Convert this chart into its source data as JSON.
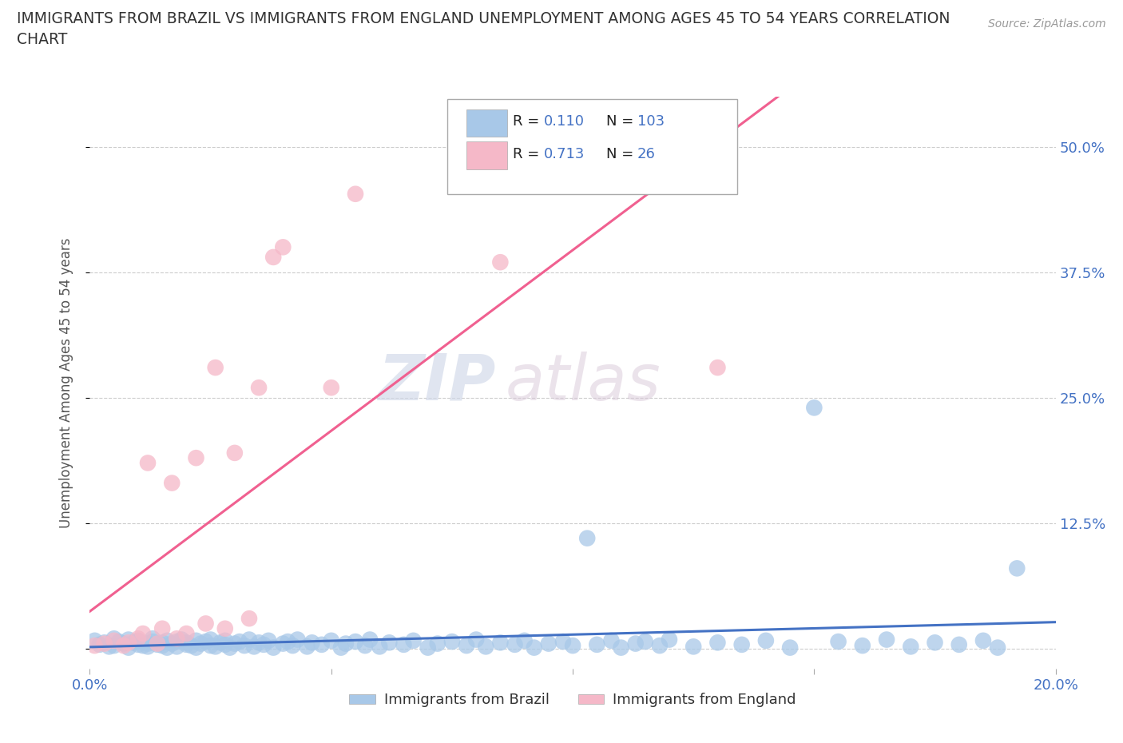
{
  "title": "IMMIGRANTS FROM BRAZIL VS IMMIGRANTS FROM ENGLAND UNEMPLOYMENT AMONG AGES 45 TO 54 YEARS CORRELATION\nCHART",
  "source_text": "Source: ZipAtlas.com",
  "ylabel": "Unemployment Among Ages 45 to 54 years",
  "xlim": [
    0.0,
    0.2
  ],
  "ylim": [
    -0.02,
    0.55
  ],
  "xticks": [
    0.0,
    0.05,
    0.1,
    0.15,
    0.2
  ],
  "xticklabels": [
    "0.0%",
    "",
    "",
    "",
    "20.0%"
  ],
  "yticks": [
    0.0,
    0.125,
    0.25,
    0.375,
    0.5
  ],
  "yticklabels_right": [
    "",
    "12.5%",
    "25.0%",
    "37.5%",
    "50.0%"
  ],
  "brazil_color": "#a8c8e8",
  "england_color": "#f5b8c8",
  "brazil_line_color": "#4472c4",
  "england_line_color": "#f06090",
  "brazil_R": 0.11,
  "brazil_N": 103,
  "england_R": 0.713,
  "england_N": 26,
  "watermark_zip": "ZIP",
  "watermark_atlas": "atlas",
  "legend_brazil": "Immigrants from Brazil",
  "legend_england": "Immigrants from England",
  "grid_color": "#cccccc",
  "background_color": "#ffffff",
  "title_color": "#333333",
  "axis_label_color": "#555555",
  "tick_label_color": "#4472c4",
  "brazil_x": [
    0.001,
    0.002,
    0.003,
    0.004,
    0.005,
    0.005,
    0.006,
    0.007,
    0.008,
    0.008,
    0.009,
    0.01,
    0.01,
    0.011,
    0.012,
    0.012,
    0.013,
    0.013,
    0.014,
    0.015,
    0.015,
    0.016,
    0.016,
    0.017,
    0.018,
    0.018,
    0.019,
    0.02,
    0.02,
    0.021,
    0.022,
    0.022,
    0.023,
    0.024,
    0.025,
    0.025,
    0.026,
    0.027,
    0.028,
    0.028,
    0.029,
    0.03,
    0.031,
    0.032,
    0.033,
    0.034,
    0.035,
    0.036,
    0.037,
    0.038,
    0.04,
    0.041,
    0.042,
    0.043,
    0.045,
    0.046,
    0.048,
    0.05,
    0.052,
    0.053,
    0.055,
    0.057,
    0.058,
    0.06,
    0.062,
    0.065,
    0.067,
    0.07,
    0.072,
    0.075,
    0.078,
    0.08,
    0.082,
    0.085,
    0.088,
    0.09,
    0.092,
    0.095,
    0.098,
    0.1,
    0.103,
    0.105,
    0.108,
    0.11,
    0.113,
    0.115,
    0.118,
    0.12,
    0.125,
    0.13,
    0.135,
    0.14,
    0.145,
    0.15,
    0.155,
    0.16,
    0.165,
    0.17,
    0.175,
    0.18,
    0.185,
    0.188,
    0.192
  ],
  "brazil_y": [
    0.008,
    0.004,
    0.006,
    0.002,
    0.01,
    0.003,
    0.007,
    0.005,
    0.009,
    0.001,
    0.006,
    0.004,
    0.008,
    0.003,
    0.005,
    0.002,
    0.007,
    0.01,
    0.004,
    0.006,
    0.003,
    0.008,
    0.001,
    0.005,
    0.007,
    0.002,
    0.009,
    0.004,
    0.006,
    0.003,
    0.008,
    0.001,
    0.005,
    0.007,
    0.003,
    0.009,
    0.002,
    0.006,
    0.004,
    0.008,
    0.001,
    0.005,
    0.007,
    0.003,
    0.009,
    0.002,
    0.006,
    0.004,
    0.008,
    0.001,
    0.005,
    0.007,
    0.003,
    0.009,
    0.002,
    0.006,
    0.004,
    0.008,
    0.001,
    0.005,
    0.007,
    0.003,
    0.009,
    0.002,
    0.006,
    0.004,
    0.008,
    0.001,
    0.005,
    0.007,
    0.003,
    0.009,
    0.002,
    0.006,
    0.004,
    0.008,
    0.001,
    0.005,
    0.007,
    0.003,
    0.11,
    0.004,
    0.008,
    0.001,
    0.005,
    0.007,
    0.003,
    0.009,
    0.002,
    0.006,
    0.004,
    0.008,
    0.001,
    0.24,
    0.007,
    0.003,
    0.009,
    0.002,
    0.006,
    0.004,
    0.008,
    0.001,
    0.08
  ],
  "england_x": [
    0.001,
    0.003,
    0.005,
    0.007,
    0.008,
    0.01,
    0.011,
    0.012,
    0.014,
    0.015,
    0.017,
    0.018,
    0.02,
    0.022,
    0.024,
    0.026,
    0.028,
    0.03,
    0.033,
    0.035,
    0.038,
    0.04,
    0.05,
    0.055,
    0.085,
    0.13
  ],
  "england_y": [
    0.003,
    0.005,
    0.008,
    0.003,
    0.006,
    0.01,
    0.015,
    0.185,
    0.005,
    0.02,
    0.165,
    0.01,
    0.015,
    0.19,
    0.025,
    0.28,
    0.02,
    0.195,
    0.03,
    0.26,
    0.39,
    0.4,
    0.26,
    0.453,
    0.385,
    0.28
  ]
}
